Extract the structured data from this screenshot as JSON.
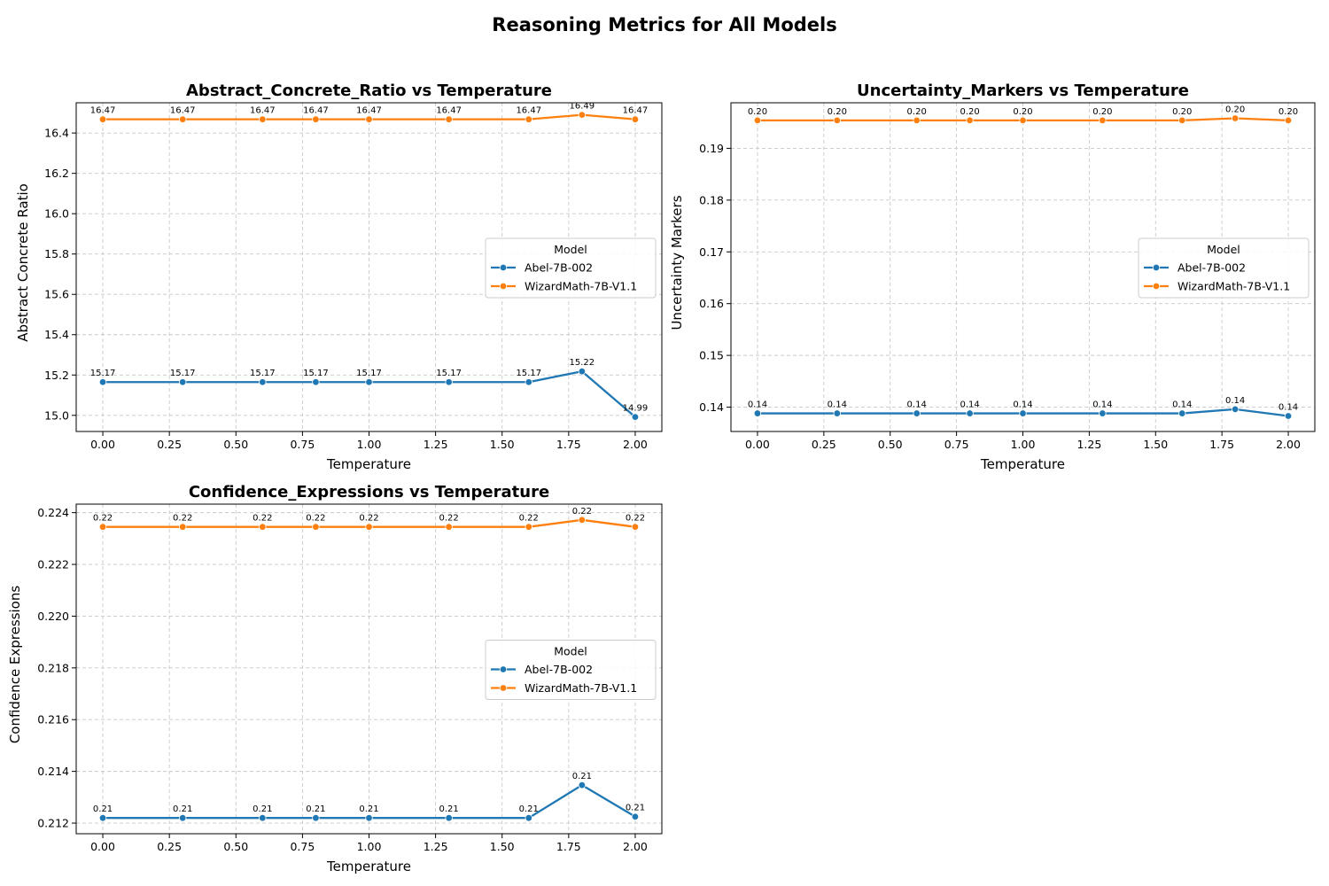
{
  "figure": {
    "title": "Reasoning Metrics for All Models"
  },
  "colors": {
    "Abel-7B-002": "#1f77b4",
    "WizardMath-7B-V1.1": "#ff7f0e"
  },
  "chart_data": [
    {
      "type": "line",
      "title": "Abstract_Concrete_Ratio vs Temperature",
      "xlabel": "Temperature",
      "ylabel": "Abstract Concrete Ratio",
      "xlim": [
        -0.1,
        2.1
      ],
      "ylim": [
        14.92,
        16.55
      ],
      "xticks": [
        0.0,
        0.25,
        0.5,
        0.75,
        1.0,
        1.25,
        1.5,
        1.75,
        2.0
      ],
      "xtick_labels": [
        "0.00",
        "0.25",
        "0.50",
        "0.75",
        "1.00",
        "1.25",
        "1.50",
        "1.75",
        "2.00"
      ],
      "yticks": [
        15.0,
        15.2,
        15.4,
        15.6,
        15.8,
        16.0,
        16.2,
        16.4
      ],
      "ytick_labels": [
        "15.0",
        "15.2",
        "15.4",
        "15.6",
        "15.8",
        "16.0",
        "16.2",
        "16.4"
      ],
      "grid": true,
      "legend": {
        "title": "Model",
        "placement": "center-right"
      },
      "x": [
        0.0,
        0.3,
        0.6,
        0.8,
        1.0,
        1.3,
        1.6,
        1.8,
        2.0
      ],
      "series": [
        {
          "name": "Abel-7B-002",
          "values": [
            15.165,
            15.165,
            15.165,
            15.165,
            15.165,
            15.165,
            15.165,
            15.218,
            14.992
          ],
          "labels": [
            "15.17",
            "15.17",
            "15.17",
            "15.17",
            "15.17",
            "15.17",
            "15.17",
            "15.22",
            "14.99"
          ]
        },
        {
          "name": "WizardMath-7B-V1.1",
          "values": [
            16.468,
            16.468,
            16.468,
            16.468,
            16.468,
            16.468,
            16.468,
            16.49,
            16.468
          ],
          "labels": [
            "16.47",
            "16.47",
            "16.47",
            "16.47",
            "16.47",
            "16.47",
            "16.47",
            "16.49",
            "16.47"
          ]
        }
      ]
    },
    {
      "type": "line",
      "title": "Uncertainty_Markers vs Temperature",
      "xlabel": "Temperature",
      "ylabel": "Uncertainty Markers",
      "xlim": [
        -0.1,
        2.1
      ],
      "ylim": [
        0.1353,
        0.1988
      ],
      "xticks": [
        0.0,
        0.25,
        0.5,
        0.75,
        1.0,
        1.25,
        1.5,
        1.75,
        2.0
      ],
      "xtick_labels": [
        "0.00",
        "0.25",
        "0.50",
        "0.75",
        "1.00",
        "1.25",
        "1.50",
        "1.75",
        "2.00"
      ],
      "yticks": [
        0.14,
        0.15,
        0.16,
        0.17,
        0.18,
        0.19
      ],
      "ytick_labels": [
        "0.14",
        "0.15",
        "0.16",
        "0.17",
        "0.18",
        "0.19"
      ],
      "grid": true,
      "legend": {
        "title": "Model",
        "placement": "center-right"
      },
      "x": [
        0.0,
        0.3,
        0.6,
        0.8,
        1.0,
        1.3,
        1.6,
        1.8,
        2.0
      ],
      "series": [
        {
          "name": "Abel-7B-002",
          "values": [
            0.1388,
            0.1388,
            0.1388,
            0.1388,
            0.1388,
            0.1388,
            0.1388,
            0.1396,
            0.1383
          ],
          "labels": [
            "0.14",
            "0.14",
            "0.14",
            "0.14",
            "0.14",
            "0.14",
            "0.14",
            "0.14",
            "0.14"
          ]
        },
        {
          "name": "WizardMath-7B-V1.1",
          "values": [
            0.1954,
            0.1954,
            0.1954,
            0.1954,
            0.1954,
            0.1954,
            0.1954,
            0.1958,
            0.1954
          ],
          "labels": [
            "0.20",
            "0.20",
            "0.20",
            "0.20",
            "0.20",
            "0.20",
            "0.20",
            "0.20",
            "0.20"
          ]
        }
      ]
    },
    {
      "type": "line",
      "title": "Confidence_Expressions vs Temperature",
      "xlabel": "Temperature",
      "ylabel": "Confidence Expressions",
      "xlim": [
        -0.1,
        2.1
      ],
      "ylim": [
        0.21159,
        0.22433
      ],
      "xticks": [
        0.0,
        0.25,
        0.5,
        0.75,
        1.0,
        1.25,
        1.5,
        1.75,
        2.0
      ],
      "xtick_labels": [
        "0.00",
        "0.25",
        "0.50",
        "0.75",
        "1.00",
        "1.25",
        "1.50",
        "1.75",
        "2.00"
      ],
      "yticks": [
        0.212,
        0.214,
        0.216,
        0.218,
        0.22,
        0.222,
        0.224
      ],
      "ytick_labels": [
        "0.212",
        "0.214",
        "0.216",
        "0.218",
        "0.220",
        "0.222",
        "0.224"
      ],
      "grid": true,
      "legend": {
        "title": "Model",
        "placement": "center-right"
      },
      "x": [
        0.0,
        0.3,
        0.6,
        0.8,
        1.0,
        1.3,
        1.6,
        1.8,
        2.0
      ],
      "series": [
        {
          "name": "Abel-7B-002",
          "values": [
            0.2122,
            0.2122,
            0.2122,
            0.2122,
            0.2122,
            0.2122,
            0.2122,
            0.21347,
            0.21225
          ],
          "labels": [
            "0.21",
            "0.21",
            "0.21",
            "0.21",
            "0.21",
            "0.21",
            "0.21",
            "0.21",
            "0.21"
          ]
        },
        {
          "name": "WizardMath-7B-V1.1",
          "values": [
            0.22345,
            0.22345,
            0.22345,
            0.22345,
            0.22345,
            0.22345,
            0.22345,
            0.22372,
            0.22345
          ],
          "labels": [
            "0.22",
            "0.22",
            "0.22",
            "0.22",
            "0.22",
            "0.22",
            "0.22",
            "0.22",
            "0.22"
          ]
        }
      ]
    }
  ]
}
